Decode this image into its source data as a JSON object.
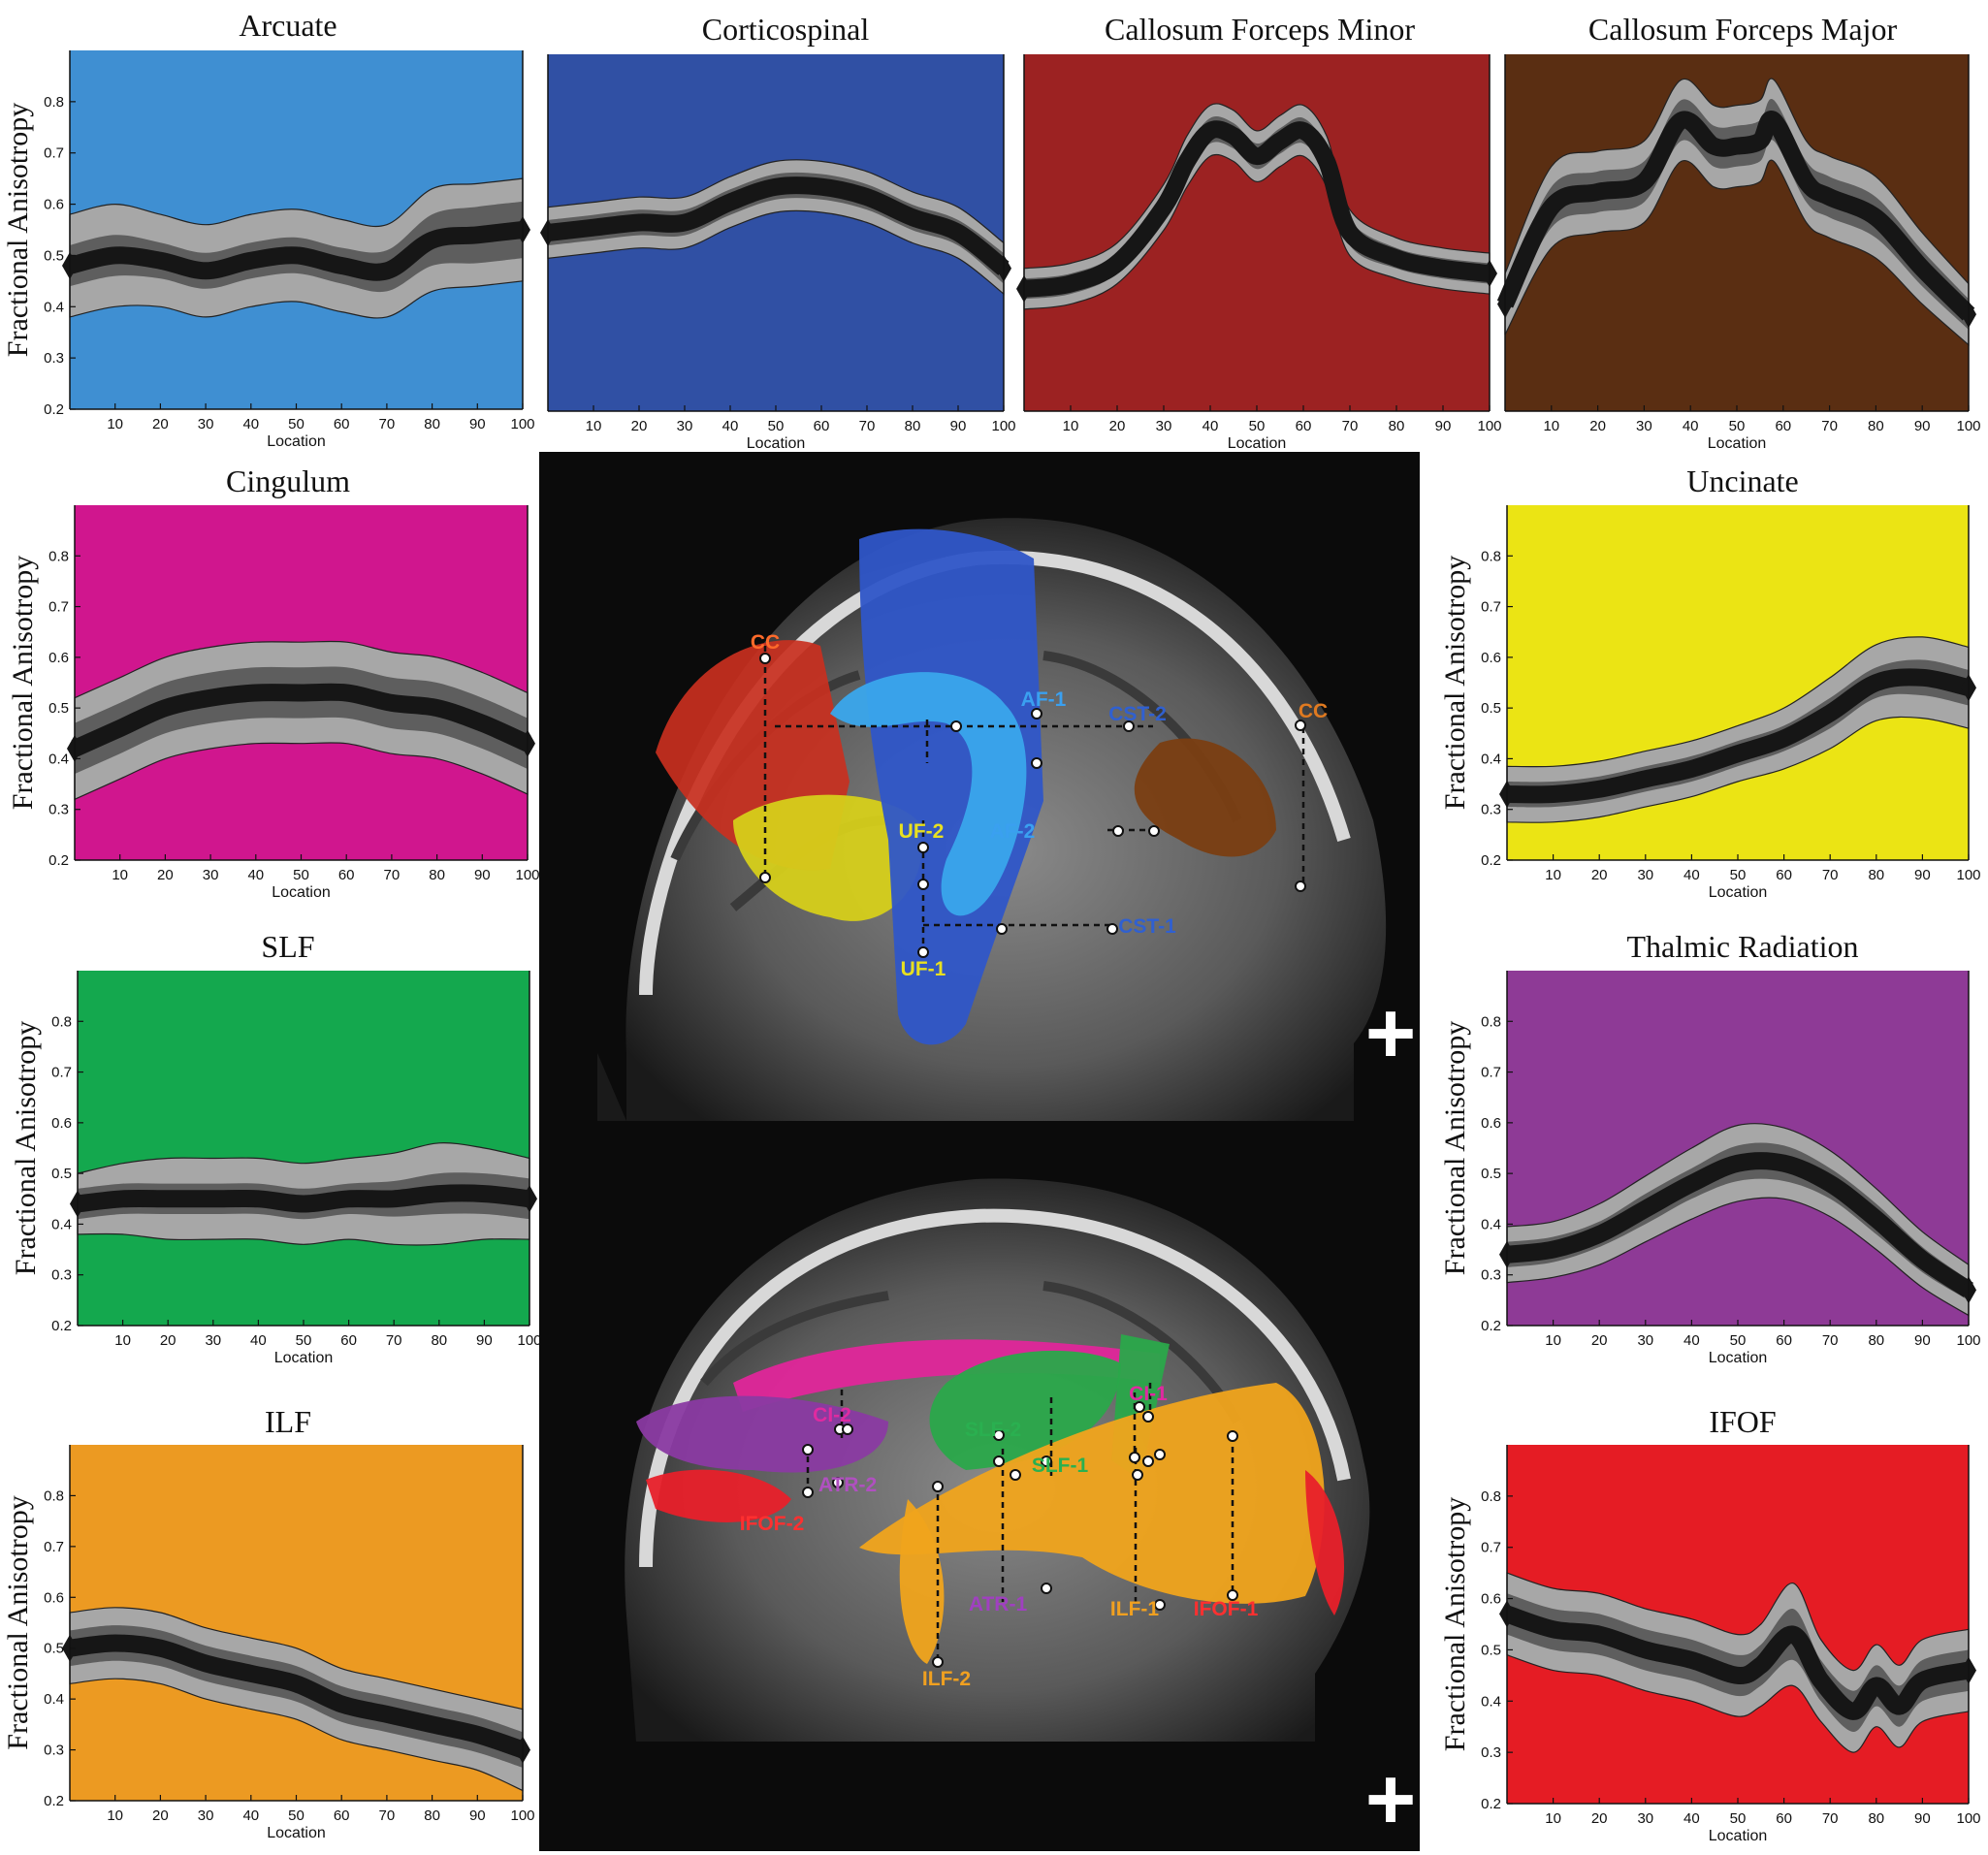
{
  "colors": {
    "arcuate": "#3f8fd2",
    "corticospinal": "#3050a4",
    "forceps_minor": "#9c2222",
    "forceps_major": "#5a2e12",
    "cingulum": "#d0168e",
    "uncinate": "#ebe414",
    "slf": "#14a84e",
    "thalamic": "#8e3a96",
    "ilf": "#ec9a22",
    "ifof": "#e51c24",
    "band_outer": "#a7a7a7",
    "band_inner": "#5e5e5e",
    "mean_line": "#161616"
  },
  "chart_data": [
    {
      "id": "arcuate",
      "type": "area",
      "title": "Arcuate",
      "xlabel": "Location",
      "ylabel": "Fractional Anisotropy",
      "xlim": [
        0,
        100
      ],
      "ylim": [
        0.2,
        0.9
      ],
      "xticks": [
        10,
        20,
        30,
        40,
        50,
        60,
        70,
        80,
        90,
        100
      ],
      "yticks": [
        0.2,
        0.3,
        0.4,
        0.5,
        0.6,
        0.7,
        0.8
      ],
      "x": [
        0,
        10,
        20,
        30,
        40,
        50,
        60,
        70,
        80,
        90,
        100
      ],
      "mean": [
        0.48,
        0.5,
        0.49,
        0.47,
        0.49,
        0.5,
        0.48,
        0.47,
        0.53,
        0.54,
        0.55
      ],
      "inner": [
        0.04,
        0.04,
        0.035,
        0.035,
        0.035,
        0.035,
        0.035,
        0.04,
        0.05,
        0.055,
        0.055
      ],
      "outer": [
        0.1,
        0.1,
        0.09,
        0.09,
        0.09,
        0.09,
        0.09,
        0.09,
        0.1,
        0.1,
        0.1
      ]
    },
    {
      "id": "corticospinal",
      "type": "area",
      "title": "Corticospinal",
      "xlabel": "Location",
      "ylabel": "",
      "xlim": [
        0,
        100
      ],
      "ylim": [
        0.2,
        0.9
      ],
      "xticks": [
        10,
        20,
        30,
        40,
        50,
        60,
        70,
        80,
        90,
        100
      ],
      "yticks": [],
      "x": [
        0,
        10,
        20,
        30,
        40,
        50,
        60,
        70,
        80,
        90,
        100
      ],
      "mean": [
        0.55,
        0.56,
        0.57,
        0.57,
        0.61,
        0.64,
        0.64,
        0.62,
        0.58,
        0.55,
        0.48
      ],
      "inner": [
        0.025,
        0.025,
        0.025,
        0.025,
        0.025,
        0.025,
        0.025,
        0.025,
        0.025,
        0.025,
        0.03
      ],
      "outer": [
        0.05,
        0.05,
        0.05,
        0.05,
        0.05,
        0.05,
        0.05,
        0.05,
        0.05,
        0.05,
        0.05
      ]
    },
    {
      "id": "forceps_minor",
      "type": "area",
      "title": "Callosum Forceps Minor",
      "xlabel": "Location",
      "ylabel": "",
      "xlim": [
        0,
        100
      ],
      "ylim": [
        0.2,
        0.9
      ],
      "xticks": [
        10,
        20,
        30,
        40,
        50,
        60,
        70,
        80,
        90,
        100
      ],
      "yticks": [],
      "x": [
        0,
        10,
        20,
        30,
        35,
        40,
        45,
        50,
        55,
        60,
        65,
        70,
        80,
        90,
        100
      ],
      "mean": [
        0.44,
        0.45,
        0.49,
        0.6,
        0.69,
        0.75,
        0.74,
        0.7,
        0.73,
        0.75,
        0.69,
        0.55,
        0.5,
        0.48,
        0.47
      ],
      "inner": [
        0.02,
        0.02,
        0.02,
        0.025,
        0.025,
        0.025,
        0.025,
        0.025,
        0.025,
        0.025,
        0.025,
        0.025,
        0.02,
        0.02,
        0.02
      ],
      "outer": [
        0.04,
        0.04,
        0.04,
        0.045,
        0.05,
        0.05,
        0.05,
        0.05,
        0.05,
        0.05,
        0.05,
        0.045,
        0.04,
        0.04,
        0.04
      ]
    },
    {
      "id": "forceps_major",
      "type": "area",
      "title": "Callosum Forceps Major",
      "xlabel": "Location",
      "ylabel": "",
      "xlim": [
        0,
        100
      ],
      "ylim": [
        0.2,
        0.9
      ],
      "xticks": [
        10,
        20,
        30,
        40,
        50,
        60,
        70,
        80,
        90,
        100
      ],
      "yticks": [],
      "x": [
        0,
        10,
        20,
        30,
        38,
        45,
        50,
        55,
        58,
        65,
        70,
        80,
        90,
        100
      ],
      "mean": [
        0.41,
        0.6,
        0.63,
        0.65,
        0.77,
        0.72,
        0.72,
        0.73,
        0.77,
        0.65,
        0.62,
        0.58,
        0.48,
        0.39
      ],
      "inner": [
        0.03,
        0.04,
        0.04,
        0.04,
        0.04,
        0.04,
        0.04,
        0.04,
        0.04,
        0.04,
        0.04,
        0.04,
        0.035,
        0.03
      ],
      "outer": [
        0.06,
        0.08,
        0.08,
        0.08,
        0.08,
        0.08,
        0.08,
        0.08,
        0.08,
        0.08,
        0.08,
        0.08,
        0.07,
        0.06
      ]
    },
    {
      "id": "cingulum",
      "type": "area",
      "title": "Cingulum",
      "xlabel": "Location",
      "ylabel": "Fractional Anisotropy",
      "xlim": [
        0,
        100
      ],
      "ylim": [
        0.2,
        0.9
      ],
      "xticks": [
        10,
        20,
        30,
        40,
        50,
        60,
        70,
        80,
        90,
        100
      ],
      "yticks": [
        0.2,
        0.3,
        0.4,
        0.5,
        0.6,
        0.7,
        0.8
      ],
      "x": [
        0,
        10,
        20,
        30,
        40,
        50,
        60,
        70,
        80,
        90,
        100
      ],
      "mean": [
        0.42,
        0.46,
        0.5,
        0.52,
        0.53,
        0.53,
        0.53,
        0.51,
        0.5,
        0.47,
        0.43
      ],
      "inner": [
        0.05,
        0.05,
        0.05,
        0.05,
        0.05,
        0.05,
        0.05,
        0.05,
        0.05,
        0.05,
        0.05
      ],
      "outer": [
        0.1,
        0.1,
        0.1,
        0.1,
        0.1,
        0.1,
        0.1,
        0.1,
        0.1,
        0.1,
        0.1
      ]
    },
    {
      "id": "uncinate",
      "type": "area",
      "title": "Uncinate",
      "xlabel": "Location",
      "ylabel": "Fractional Anisotropy",
      "xlim": [
        0,
        100
      ],
      "ylim": [
        0.2,
        0.9
      ],
      "xticks": [
        10,
        20,
        30,
        40,
        50,
        60,
        70,
        80,
        90,
        100
      ],
      "yticks": [
        0.2,
        0.3,
        0.4,
        0.5,
        0.6,
        0.7,
        0.8
      ],
      "x": [
        0,
        10,
        20,
        30,
        40,
        50,
        60,
        70,
        80,
        90,
        100
      ],
      "mean": [
        0.33,
        0.33,
        0.34,
        0.36,
        0.38,
        0.41,
        0.44,
        0.49,
        0.55,
        0.56,
        0.54
      ],
      "inner": [
        0.025,
        0.025,
        0.025,
        0.025,
        0.025,
        0.025,
        0.025,
        0.03,
        0.03,
        0.035,
        0.035
      ],
      "outer": [
        0.055,
        0.055,
        0.055,
        0.055,
        0.055,
        0.055,
        0.06,
        0.07,
        0.075,
        0.08,
        0.08
      ]
    },
    {
      "id": "slf",
      "type": "area",
      "title": "SLF",
      "xlabel": "Location",
      "ylabel": "Fractional Anisotropy",
      "xlim": [
        0,
        100
      ],
      "ylim": [
        0.2,
        0.9
      ],
      "xticks": [
        10,
        20,
        30,
        40,
        50,
        60,
        70,
        80,
        90,
        100
      ],
      "yticks": [
        0.2,
        0.3,
        0.4,
        0.5,
        0.6,
        0.7,
        0.8
      ],
      "x": [
        0,
        10,
        20,
        30,
        40,
        50,
        60,
        70,
        80,
        90,
        100
      ],
      "mean": [
        0.44,
        0.45,
        0.45,
        0.45,
        0.45,
        0.44,
        0.45,
        0.45,
        0.46,
        0.46,
        0.45
      ],
      "inner": [
        0.03,
        0.03,
        0.03,
        0.03,
        0.03,
        0.03,
        0.03,
        0.035,
        0.04,
        0.04,
        0.04
      ],
      "outer": [
        0.06,
        0.07,
        0.08,
        0.08,
        0.08,
        0.08,
        0.08,
        0.09,
        0.1,
        0.09,
        0.08
      ]
    },
    {
      "id": "thalamic",
      "type": "area",
      "title": "Thalmic Radiation",
      "xlabel": "Location",
      "ylabel": "Fractional Anisotropy",
      "xlim": [
        0,
        100
      ],
      "ylim": [
        0.2,
        0.9
      ],
      "xticks": [
        10,
        20,
        30,
        40,
        50,
        60,
        70,
        80,
        90,
        100
      ],
      "yticks": [
        0.2,
        0.3,
        0.4,
        0.5,
        0.6,
        0.7,
        0.8
      ],
      "x": [
        0,
        10,
        20,
        30,
        40,
        50,
        60,
        70,
        80,
        90,
        100
      ],
      "mean": [
        0.34,
        0.35,
        0.38,
        0.43,
        0.48,
        0.52,
        0.52,
        0.48,
        0.41,
        0.33,
        0.27
      ],
      "inner": [
        0.025,
        0.025,
        0.025,
        0.03,
        0.03,
        0.035,
        0.035,
        0.03,
        0.03,
        0.025,
        0.02
      ],
      "outer": [
        0.055,
        0.055,
        0.06,
        0.065,
        0.07,
        0.075,
        0.07,
        0.065,
        0.06,
        0.055,
        0.05
      ]
    },
    {
      "id": "ilf",
      "type": "area",
      "title": "ILF",
      "xlabel": "Location",
      "ylabel": "Fractional Anisotropy",
      "xlim": [
        0,
        100
      ],
      "ylim": [
        0.2,
        0.9
      ],
      "xticks": [
        10,
        20,
        30,
        40,
        50,
        60,
        70,
        80,
        90,
        100
      ],
      "yticks": [
        0.2,
        0.3,
        0.4,
        0.5,
        0.6,
        0.7,
        0.8
      ],
      "x": [
        0,
        10,
        20,
        30,
        40,
        50,
        60,
        70,
        80,
        90,
        100
      ],
      "mean": [
        0.5,
        0.51,
        0.5,
        0.47,
        0.45,
        0.43,
        0.39,
        0.37,
        0.35,
        0.33,
        0.3
      ],
      "inner": [
        0.035,
        0.035,
        0.035,
        0.035,
        0.035,
        0.035,
        0.035,
        0.035,
        0.035,
        0.035,
        0.035
      ],
      "outer": [
        0.07,
        0.07,
        0.07,
        0.07,
        0.07,
        0.07,
        0.07,
        0.07,
        0.07,
        0.07,
        0.08
      ]
    },
    {
      "id": "ifof",
      "type": "area",
      "title": "IFOF",
      "xlabel": "Location",
      "ylabel": "Fractional Anisotropy",
      "xlim": [
        0,
        100
      ],
      "ylim": [
        0.2,
        0.9
      ],
      "xticks": [
        10,
        20,
        30,
        40,
        50,
        60,
        70,
        80,
        90,
        100
      ],
      "yticks": [
        0.2,
        0.3,
        0.4,
        0.5,
        0.6,
        0.7,
        0.8
      ],
      "x": [
        0,
        10,
        20,
        30,
        40,
        50,
        55,
        62,
        68,
        75,
        80,
        85,
        90,
        100
      ],
      "mean": [
        0.57,
        0.54,
        0.53,
        0.5,
        0.48,
        0.45,
        0.47,
        0.53,
        0.44,
        0.38,
        0.43,
        0.39,
        0.44,
        0.46
      ],
      "inner": [
        0.04,
        0.04,
        0.04,
        0.04,
        0.04,
        0.04,
        0.04,
        0.05,
        0.04,
        0.04,
        0.04,
        0.04,
        0.04,
        0.04
      ],
      "outer": [
        0.08,
        0.08,
        0.08,
        0.08,
        0.08,
        0.08,
        0.08,
        0.1,
        0.08,
        0.08,
        0.08,
        0.08,
        0.08,
        0.08
      ]
    }
  ],
  "brain_labels": {
    "top": [
      {
        "text": "CC",
        "color": "#ff6a2a"
      },
      {
        "text": "AF-1",
        "color": "#3aa0f0"
      },
      {
        "text": "CST-2",
        "color": "#3060d0"
      },
      {
        "text": "CC",
        "color": "#e07a20"
      },
      {
        "text": "UF-2",
        "color": "#e8e020"
      },
      {
        "text": "AF-2",
        "color": "#3aa0f0"
      },
      {
        "text": "CST-1",
        "color": "#3060d0"
      },
      {
        "text": "UF-1",
        "color": "#e8e020"
      }
    ],
    "bottom": [
      {
        "text": "CI-2",
        "color": "#e02aa0"
      },
      {
        "text": "CI-1",
        "color": "#e02aa0"
      },
      {
        "text": "SLF-2",
        "color": "#2ab050"
      },
      {
        "text": "SLF-1",
        "color": "#2ab050"
      },
      {
        "text": "ATR-2",
        "color": "#b050c0"
      },
      {
        "text": "IFOF-2",
        "color": "#ff3030"
      },
      {
        "text": "ATR-1",
        "color": "#a040c0"
      },
      {
        "text": "ILF-1",
        "color": "#f0a020"
      },
      {
        "text": "IFOF-1",
        "color": "#ff3030"
      },
      {
        "text": "ILF-2",
        "color": "#f0a020"
      }
    ]
  },
  "plus_sign": "+"
}
